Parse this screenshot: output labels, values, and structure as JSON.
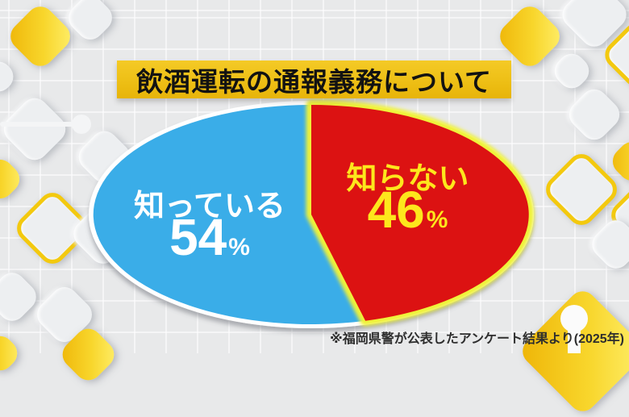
{
  "title": {
    "text": "飲酒運転の通報義務について"
  },
  "footnote": {
    "text": "※福岡県警が公表したアンケート結果より(2025年)"
  },
  "chart_data": {
    "type": "pie",
    "title": "飲酒運転の通報義務について",
    "shape": "wide-ellipse",
    "start_angle_deg": 0,
    "labels_inside": true,
    "slices": [
      {
        "label": "知っている",
        "value": 54,
        "unit": "%",
        "color": "#3aade8",
        "text_color": "#ffffff"
      },
      {
        "label": "知らない",
        "value": 46,
        "unit": "%",
        "color": "#dc1212",
        "text_color": "#fde71c",
        "emphasis": "yellow-glow-outline"
      }
    ],
    "source": "※福岡県警が公表したアンケート結果より(2025年)"
  },
  "colors": {
    "background": "#e8e9ea",
    "title_banner": "#eec01d",
    "title_text": "#121212",
    "slice_know": "#3aade8",
    "slice_dont_know": "#dc1212",
    "glow": "#eff239",
    "pie_rim": "#ffffff",
    "label_yellow": "#fde71c",
    "footnote_text": "#2e2e2e",
    "decor_yellow": "#f3c614",
    "decor_gray": "#edeff1"
  }
}
